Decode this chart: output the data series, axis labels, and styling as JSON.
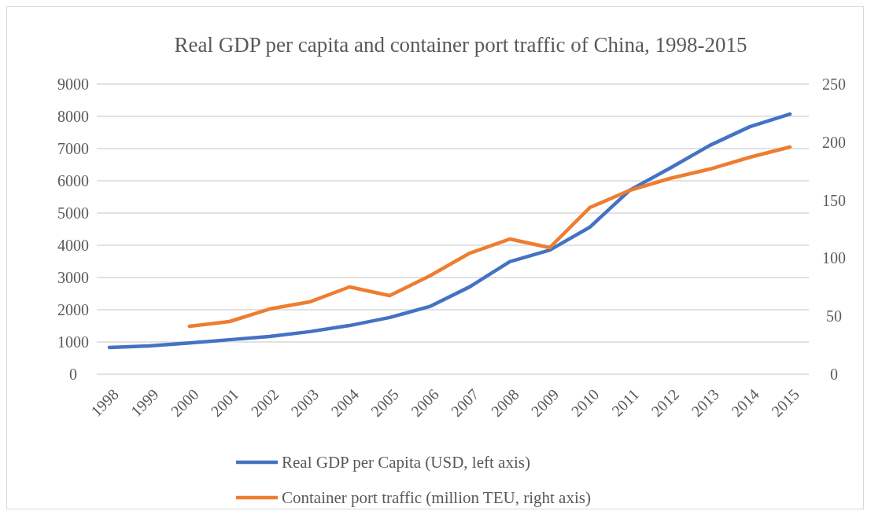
{
  "chart_data": {
    "type": "line",
    "title": "Real GDP per capita and container port traffic of China, 1998-2015",
    "categories": [
      "1998",
      "1999",
      "2000",
      "2001",
      "2002",
      "2003",
      "2004",
      "2005",
      "2006",
      "2007",
      "2008",
      "2009",
      "2010",
      "2011",
      "2012",
      "2013",
      "2014",
      "2015"
    ],
    "series": [
      {
        "name": "Real GDP per Capita (USD, left axis)",
        "color": "#4472c4",
        "values": [
          830,
          880,
          970,
          1070,
          1170,
          1320,
          1510,
          1760,
          2100,
          2710,
          3490,
          3850,
          4560,
          5710,
          6390,
          7100,
          7680,
          8070
        ]
      },
      {
        "name": "Container port traffic (million TEU, right axis)",
        "color": "#ed7d31",
        "axis": "y2",
        "values": [
          null,
          null,
          41.3,
          45.4,
          56.2,
          62.3,
          75.2,
          67.8,
          84.7,
          104.3,
          116.5,
          109.1,
          143.6,
          158.5,
          168.7,
          176.8,
          187,
          195.8
        ]
      }
    ],
    "ylim": [
      0,
      9000
    ],
    "yticks": [
      0,
      1000,
      2000,
      3000,
      4000,
      5000,
      6000,
      7000,
      8000,
      9000
    ],
    "y2lim": [
      0,
      250
    ],
    "y2ticks": [
      0,
      50,
      100,
      150,
      200,
      250
    ],
    "grid": "y",
    "legend": "bottom",
    "marker": "none",
    "line_style": "solid"
  }
}
